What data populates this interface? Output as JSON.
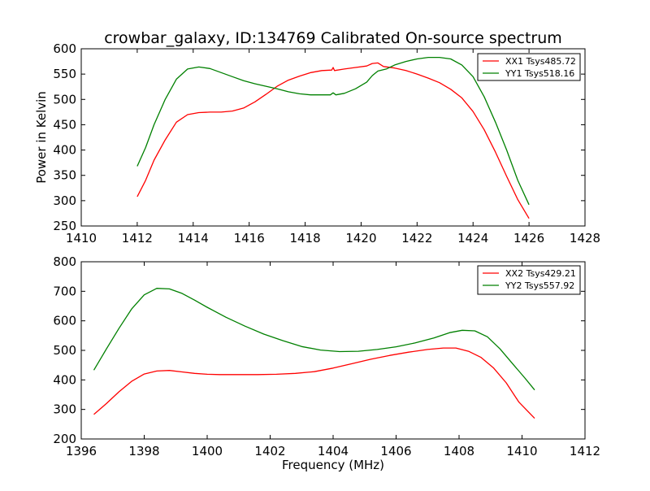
{
  "chart_data": [
    {
      "type": "line",
      "title": "crowbar_galaxy, ID:134769 Calibrated On-source spectrum",
      "xlabel": "",
      "ylabel": "Power in Kelvin",
      "xlim": [
        1410,
        1428
      ],
      "ylim": [
        250,
        600
      ],
      "xticks": [
        "1410",
        "1412",
        "1414",
        "1416",
        "1418",
        "1420",
        "1422",
        "1424",
        "1426",
        "1428"
      ],
      "yticks": [
        "250",
        "300",
        "350",
        "400",
        "450",
        "500",
        "550",
        "600"
      ],
      "legend_position": "top-right",
      "grid": false,
      "series": [
        {
          "name": "XX1 Tsys485.72",
          "color": "#ff0000",
          "points": [
            [
              1412.0,
              308
            ],
            [
              1412.3,
              340
            ],
            [
              1412.6,
              380
            ],
            [
              1413.0,
              420
            ],
            [
              1413.4,
              455
            ],
            [
              1413.8,
              470
            ],
            [
              1414.2,
              474
            ],
            [
              1414.6,
              475
            ],
            [
              1415.0,
              475
            ],
            [
              1415.4,
              477
            ],
            [
              1415.8,
              483
            ],
            [
              1416.2,
              495
            ],
            [
              1416.6,
              510
            ],
            [
              1417.0,
              526
            ],
            [
              1417.4,
              538
            ],
            [
              1417.8,
              546
            ],
            [
              1418.2,
              553
            ],
            [
              1418.6,
              557
            ],
            [
              1418.95,
              558
            ],
            [
              1419.0,
              563
            ],
            [
              1419.05,
              557
            ],
            [
              1419.4,
              560
            ],
            [
              1419.8,
              563
            ],
            [
              1420.2,
              566
            ],
            [
              1420.4,
              571
            ],
            [
              1420.6,
              572
            ],
            [
              1420.8,
              565
            ],
            [
              1421.2,
              562
            ],
            [
              1421.6,
              557
            ],
            [
              1422.0,
              550
            ],
            [
              1422.4,
              542
            ],
            [
              1422.8,
              533
            ],
            [
              1423.2,
              520
            ],
            [
              1423.6,
              503
            ],
            [
              1424.0,
              476
            ],
            [
              1424.4,
              440
            ],
            [
              1424.8,
              396
            ],
            [
              1425.2,
              348
            ],
            [
              1425.6,
              302
            ],
            [
              1426.0,
              265
            ]
          ]
        },
        {
          "name": "YY1 Tsys518.16",
          "color": "#008000",
          "points": [
            [
              1412.0,
              368
            ],
            [
              1412.3,
              405
            ],
            [
              1412.6,
              450
            ],
            [
              1413.0,
              500
            ],
            [
              1413.4,
              540
            ],
            [
              1413.8,
              560
            ],
            [
              1414.2,
              564
            ],
            [
              1414.6,
              561
            ],
            [
              1415.0,
              553
            ],
            [
              1415.4,
              545
            ],
            [
              1415.8,
              537
            ],
            [
              1416.2,
              531
            ],
            [
              1416.6,
              526
            ],
            [
              1417.0,
              521
            ],
            [
              1417.4,
              515
            ],
            [
              1417.8,
              511
            ],
            [
              1418.2,
              509
            ],
            [
              1418.6,
              509
            ],
            [
              1418.9,
              509
            ],
            [
              1419.0,
              513
            ],
            [
              1419.1,
              509
            ],
            [
              1419.4,
              512
            ],
            [
              1419.8,
              521
            ],
            [
              1420.2,
              534
            ],
            [
              1420.4,
              547
            ],
            [
              1420.6,
              556
            ],
            [
              1420.9,
              560
            ],
            [
              1421.2,
              568
            ],
            [
              1421.6,
              575
            ],
            [
              1422.0,
              580
            ],
            [
              1422.4,
              583
            ],
            [
              1422.8,
              583
            ],
            [
              1423.2,
              580
            ],
            [
              1423.6,
              568
            ],
            [
              1424.0,
              545
            ],
            [
              1424.4,
              505
            ],
            [
              1424.8,
              455
            ],
            [
              1425.2,
              400
            ],
            [
              1425.6,
              340
            ],
            [
              1426.0,
              292
            ]
          ]
        }
      ]
    },
    {
      "type": "line",
      "title": "",
      "xlabel": "Frequency (MHz)",
      "ylabel": "",
      "xlim": [
        1396,
        1412
      ],
      "ylim": [
        200,
        800
      ],
      "xticks": [
        "1396",
        "1398",
        "1400",
        "1402",
        "1404",
        "1406",
        "1408",
        "1410",
        "1412"
      ],
      "yticks": [
        "200",
        "300",
        "400",
        "500",
        "600",
        "700",
        "800"
      ],
      "legend_position": "top-right",
      "grid": false,
      "series": [
        {
          "name": "XX2 Tsys429.21",
          "color": "#ff0000",
          "points": [
            [
              1396.4,
              283
            ],
            [
              1396.8,
              320
            ],
            [
              1397.2,
              360
            ],
            [
              1397.6,
              395
            ],
            [
              1398.0,
              420
            ],
            [
              1398.4,
              430
            ],
            [
              1398.8,
              432
            ],
            [
              1399.2,
              427
            ],
            [
              1399.6,
              422
            ],
            [
              1400.0,
              419
            ],
            [
              1400.4,
              418
            ],
            [
              1401.0,
              418
            ],
            [
              1401.6,
              418
            ],
            [
              1402.2,
              419
            ],
            [
              1402.8,
              422
            ],
            [
              1403.4,
              428
            ],
            [
              1404.0,
              440
            ],
            [
              1404.6,
              455
            ],
            [
              1405.2,
              470
            ],
            [
              1405.8,
              483
            ],
            [
              1406.4,
              494
            ],
            [
              1407.0,
              503
            ],
            [
              1407.5,
              508
            ],
            [
              1407.9,
              508
            ],
            [
              1408.3,
              497
            ],
            [
              1408.7,
              476
            ],
            [
              1409.1,
              440
            ],
            [
              1409.5,
              390
            ],
            [
              1409.9,
              325
            ],
            [
              1410.4,
              270
            ]
          ]
        },
        {
          "name": "YY2 Tsys557.92",
          "color": "#008000",
          "points": [
            [
              1396.4,
              433
            ],
            [
              1396.8,
              505
            ],
            [
              1397.2,
              575
            ],
            [
              1397.6,
              640
            ],
            [
              1398.0,
              688
            ],
            [
              1398.4,
              710
            ],
            [
              1398.8,
              708
            ],
            [
              1399.2,
              693
            ],
            [
              1399.6,
              670
            ],
            [
              1400.0,
              646
            ],
            [
              1400.6,
              612
            ],
            [
              1401.2,
              582
            ],
            [
              1401.8,
              555
            ],
            [
              1402.4,
              533
            ],
            [
              1403.0,
              513
            ],
            [
              1403.6,
              501
            ],
            [
              1404.2,
              496
            ],
            [
              1404.8,
              497
            ],
            [
              1405.4,
              503
            ],
            [
              1406.0,
              512
            ],
            [
              1406.6,
              525
            ],
            [
              1407.2,
              542
            ],
            [
              1407.7,
              560
            ],
            [
              1408.1,
              568
            ],
            [
              1408.5,
              566
            ],
            [
              1408.9,
              546
            ],
            [
              1409.3,
              505
            ],
            [
              1409.7,
              455
            ],
            [
              1410.1,
              405
            ],
            [
              1410.4,
              366
            ]
          ]
        }
      ]
    }
  ]
}
